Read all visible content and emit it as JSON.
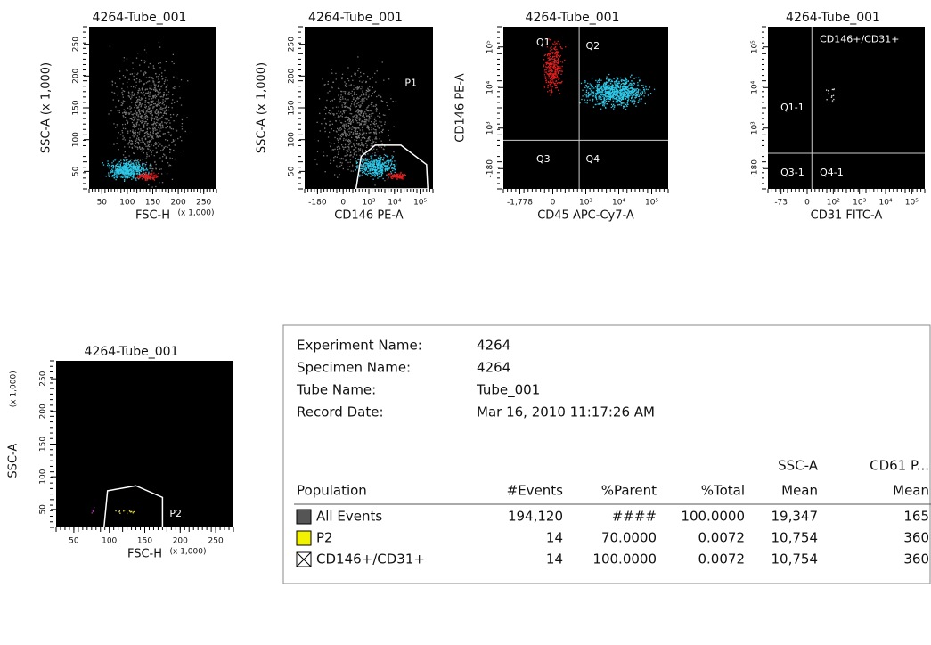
{
  "plots": [
    {
      "title": "4264-Tube_001",
      "y_label": "SSC-A (x 1,000)",
      "yticks": [
        "50",
        "100",
        "150",
        "200",
        "250"
      ],
      "x_label": "FSC-H",
      "x_unit": "(x 1,000)",
      "xticks": [
        "50",
        "100",
        "150",
        "200",
        "250"
      ],
      "gate_labels": []
    },
    {
      "title": "4264-Tube_001",
      "y_label": "SSC-A (x 1,000)",
      "yticks": [
        "50",
        "100",
        "150",
        "200",
        "250"
      ],
      "x_label": "CD146 PE-A",
      "xticks": [
        "-180",
        "0",
        "10³",
        "10⁴",
        "10⁵"
      ],
      "gate_labels": [
        "P1"
      ]
    },
    {
      "title": "4264-Tube_001",
      "y_label": "CD146 PE-A",
      "yticks": [
        "-180",
        "10³",
        "10⁴",
        "10⁵"
      ],
      "x_label": "CD45 APC-Cy7-A",
      "xticks": [
        "-1,778",
        "0",
        "10³",
        "10⁴",
        "10⁵"
      ],
      "gate_labels": [
        "Q1",
        "Q2",
        "Q3",
        "Q4"
      ]
    },
    {
      "title": "4264-Tube_001",
      "yticks": [
        "-180",
        "10³",
        "10⁴",
        "10⁵"
      ],
      "x_label": "CD31 FITC-A",
      "xticks": [
        "-73",
        "0",
        "10²",
        "10³",
        "10⁴",
        "10⁵"
      ],
      "gate_labels": [
        "CD146+/CD31+",
        "Q1-1",
        "Q3-1",
        "Q4-1"
      ]
    },
    {
      "title": "4264-Tube_001",
      "y_label": "SSC-A",
      "y_unit": "(x 1,000)",
      "yticks": [
        "50",
        "100",
        "150",
        "200",
        "250"
      ],
      "x_label": "FSC-H",
      "x_unit": "(x 1,000)",
      "xticks": [
        "50",
        "100",
        "150",
        "200",
        "250"
      ],
      "gate_labels": [
        "P2"
      ]
    }
  ],
  "stats": {
    "info": [
      {
        "label": "Experiment Name:",
        "value": "4264"
      },
      {
        "label": "Specimen Name:",
        "value": "4264"
      },
      {
        "label": "Tube Name:",
        "value": "Tube_001"
      },
      {
        "label": "Record Date:",
        "value": "Mar 16, 2010 11:17:26 AM"
      }
    ],
    "columns": [
      {
        "label": "Population"
      },
      {
        "label": "#Events"
      },
      {
        "label": "%Parent"
      },
      {
        "label": "%Total"
      },
      {
        "group": "SSC-A",
        "label": "Mean"
      },
      {
        "group": "CD61 P...",
        "label": "Mean"
      }
    ],
    "rows": [
      {
        "population": "All Events",
        "values": [
          "194,120",
          "####",
          "100.0000",
          "19,347",
          "165"
        ]
      },
      {
        "population": "P2",
        "values": [
          "14",
          "70.0000",
          "0.0072",
          "10,754",
          "360"
        ]
      },
      {
        "population": "CD146+/CD31+",
        "values": [
          "14",
          "100.0000",
          "0.0072",
          "10,754",
          "360"
        ]
      }
    ]
  }
}
